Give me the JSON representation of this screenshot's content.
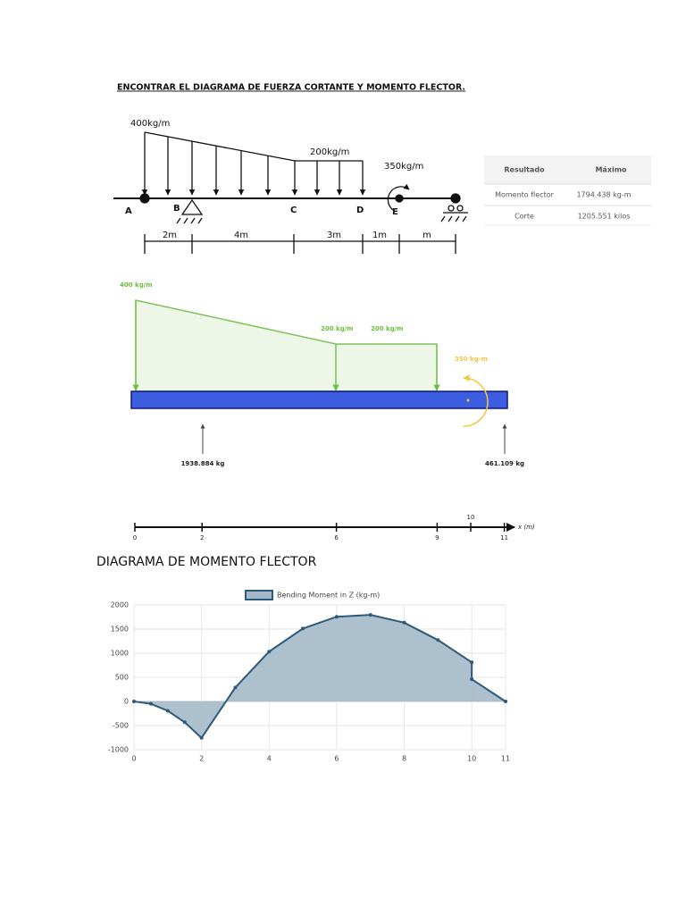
{
  "title": "ENCONTRAR EL DIAGRAMA DE FUERZA CORTANTE Y MOMENTO FLECTOR.",
  "beam_diagram": {
    "loads": [
      "400kg/m",
      "200kg/m",
      "350kg/m"
    ],
    "points": [
      "A",
      "B",
      "C",
      "D",
      "E"
    ],
    "spans": [
      "2m",
      "4m",
      "3m",
      "1m",
      "m"
    ]
  },
  "results_table": {
    "headers": [
      "Resultado",
      "Máximo"
    ],
    "rows": [
      [
        "Momento flector",
        "1794.438 kg-m"
      ],
      [
        "Corte",
        "1205.551 kilos"
      ]
    ]
  },
  "load_diagram": {
    "loads": [
      "400 kg/m",
      "200 kg/m",
      "200 kg/m",
      "350 kg-m"
    ],
    "reactions": [
      "1938.884 kg",
      "461.109 kg"
    ],
    "axis_label": "x (m)",
    "axis_ticks": [
      0,
      2,
      6,
      9,
      10,
      11
    ]
  },
  "section_title": "DIAGRAMA DE MOMENTO FLECTOR",
  "chart_data": {
    "type": "area",
    "x": [
      0,
      0.5,
      1,
      1.5,
      2,
      3,
      4,
      5,
      6,
      7,
      8,
      9,
      10,
      10,
      11
    ],
    "series": [
      {
        "name": "Bending Moment in Z (kg-m)",
        "color": "#2e5a78",
        "fill": "#a3b9c9",
        "values": [
          0,
          -49.3,
          -194.4,
          -431.3,
          -755.6,
          288.9,
          1033.3,
          1511.1,
          1755.5,
          1794.4,
          1633.3,
          1272.2,
          810.1,
          460.1,
          0
        ]
      }
    ],
    "xlim": [
      0,
      11
    ],
    "xticks": [
      0,
      2,
      4,
      6,
      8,
      10,
      11
    ],
    "ylim": [
      -1000,
      2000
    ],
    "yticks": [
      -1000,
      -500,
      0,
      500,
      1000,
      1500,
      2000
    ],
    "grid": true
  }
}
